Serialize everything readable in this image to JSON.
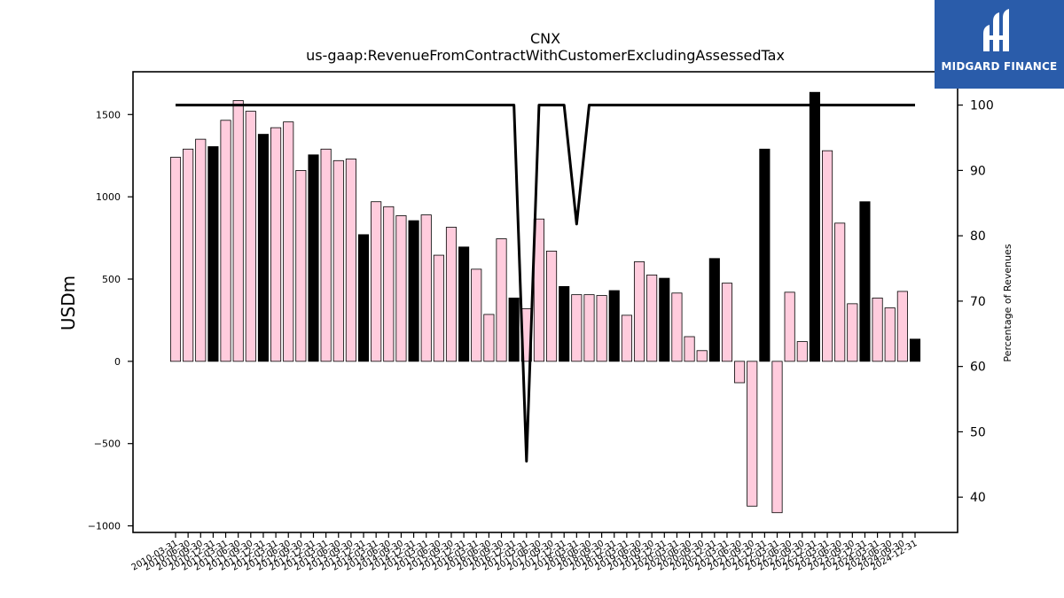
{
  "chart_data": {
    "type": "bar",
    "title": "CNX",
    "subtitle": "us-gaap:RevenueFromContractWithCustomerExcludingAssessedTax",
    "ylabel": "USDm",
    "y2label": "Percentage of Revenues",
    "ylim": [
      -1040,
      1760
    ],
    "y2lim": [
      34.6,
      105.1
    ],
    "yticks": [
      -1000,
      -500,
      0,
      500,
      1000,
      1500
    ],
    "y2ticks": [
      40,
      50,
      60,
      70,
      80,
      90,
      100
    ],
    "grid": false,
    "categories": [
      "2010-03-31",
      "2010-06-30",
      "2010-09-30",
      "2010-12-31",
      "2011-03-31",
      "2011-06-30",
      "2011-09-30",
      "2011-12-31",
      "2012-03-31",
      "2012-06-30",
      "2012-09-30",
      "2012-12-31",
      "2013-03-31",
      "2013-06-30",
      "2013-09-30",
      "2013-12-31",
      "2014-03-31",
      "2014-06-30",
      "2014-09-30",
      "2014-12-31",
      "2015-03-31",
      "2015-06-30",
      "2015-09-30",
      "2015-12-31",
      "2016-03-31",
      "2016-06-30",
      "2016-09-30",
      "2016-12-31",
      "2017-03-31",
      "2017-06-30",
      "2017-09-30",
      "2017-12-31",
      "2018-03-31",
      "2018-06-30",
      "2018-09-30",
      "2018-12-31",
      "2019-03-31",
      "2019-06-30",
      "2019-09-30",
      "2019-12-31",
      "2020-03-31",
      "2020-06-30",
      "2020-09-30",
      "2020-12-31",
      "2021-03-31",
      "2021-06-30",
      "2021-09-30",
      "2021-12-31",
      "2022-03-31",
      "2022-06-30",
      "2022-09-30",
      "2022-12-31",
      "2023-03-31",
      "2023-06-30",
      "2023-09-30",
      "2023-12-31",
      "2024-03-31",
      "2024-06-30",
      "2024-09-30",
      "2024-12-31"
    ],
    "series": [
      {
        "kind": "bar",
        "values": [
          1240,
          1290,
          1350,
          1305,
          1465,
          1585,
          1520,
          1380,
          1420,
          1455,
          1160,
          1255,
          1290,
          1220,
          1230,
          770,
          970,
          940,
          885,
          855,
          890,
          645,
          815,
          695,
          560,
          285,
          745,
          385,
          320,
          865,
          670,
          455,
          405,
          405,
          400,
          430,
          280,
          605,
          525,
          505,
          415,
          150,
          65,
          625,
          475,
          -130,
          -880,
          1290,
          -920,
          420,
          120,
          1635,
          1280,
          840,
          350,
          970,
          385,
          325,
          425,
          135
        ],
        "colors": [
          "#ffccdd",
          "#ffccdd",
          "#ffccdd",
          "#000000",
          "#ffccdd",
          "#ffccdd",
          "#ffccdd",
          "#000000",
          "#ffccdd",
          "#ffccdd",
          "#ffccdd",
          "#000000",
          "#ffccdd",
          "#ffccdd",
          "#ffccdd",
          "#000000",
          "#ffccdd",
          "#ffccdd",
          "#ffccdd",
          "#000000",
          "#ffccdd",
          "#ffccdd",
          "#ffccdd",
          "#000000",
          "#ffccdd",
          "#ffccdd",
          "#ffccdd",
          "#000000",
          "#ffccdd",
          "#ffccdd",
          "#ffccdd",
          "#000000",
          "#ffccdd",
          "#ffccdd",
          "#ffccdd",
          "#000000",
          "#ffccdd",
          "#ffccdd",
          "#ffccdd",
          "#000000",
          "#ffccdd",
          "#ffccdd",
          "#ffccdd",
          "#000000",
          "#ffccdd",
          "#ffccdd",
          "#ffccdd",
          "#000000",
          "#ffccdd",
          "#ffccdd",
          "#ffccdd",
          "#000000",
          "#ffccdd",
          "#ffccdd",
          "#ffccdd",
          "#000000",
          "#ffccdd",
          "#ffccdd",
          "#ffccdd",
          "#000000"
        ]
      },
      {
        "kind": "line",
        "axis": "right",
        "color": "#000000",
        "values": [
          100,
          100,
          100,
          100,
          100,
          100,
          100,
          100,
          100,
          100,
          100,
          100,
          100,
          100,
          100,
          100,
          100,
          100,
          100,
          100,
          100,
          100,
          100,
          100,
          100,
          100,
          100,
          100,
          45.5,
          100,
          100,
          100,
          81.8,
          100,
          100,
          100,
          100,
          100,
          100,
          100,
          100,
          100,
          100,
          100,
          100,
          100,
          100,
          100,
          100,
          100,
          100,
          100,
          100,
          100,
          100,
          100,
          100,
          100,
          100,
          100
        ]
      }
    ]
  },
  "logo": {
    "text": "MIDGARD FINANCE",
    "bg": "#2a5caa"
  }
}
